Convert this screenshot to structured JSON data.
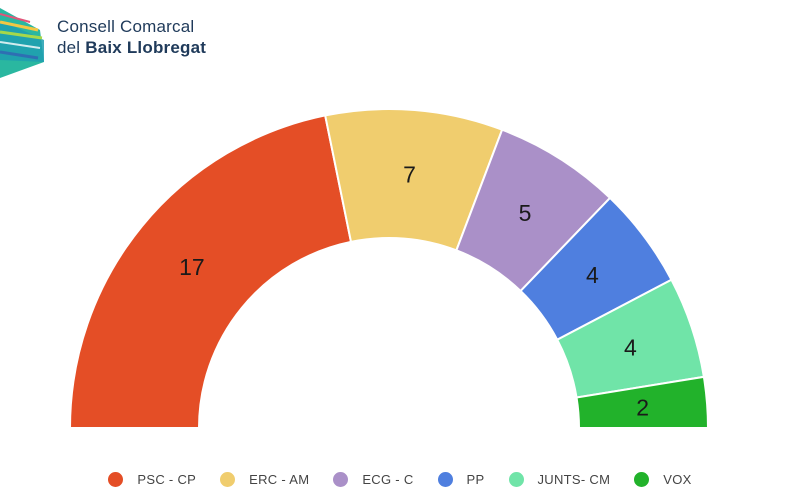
{
  "header": {
    "org_line1": "Consell Comarcal",
    "org_line2_prefix": "del ",
    "org_line2_bold": "Baix Llobregat"
  },
  "chart_data": {
    "type": "parliament_semicircle",
    "categories": [
      "PSC - CP",
      "ERC - AM",
      "ECG - C",
      "PP",
      "JUNTS- CM",
      "VOX"
    ],
    "values": [
      17,
      7,
      5,
      4,
      4,
      2
    ],
    "colors": [
      "#e44e26",
      "#f0cd6e",
      "#aa90c8",
      "#4f7fdf",
      "#70e4a8",
      "#22b22b"
    ],
    "legend_position": "bottom-center",
    "series": [
      {
        "name": "PSC - CP",
        "value": 17,
        "color": "#e44e26"
      },
      {
        "name": "ERC - AM",
        "value": 7,
        "color": "#f0cd6e"
      },
      {
        "name": "ECG - C",
        "value": 5,
        "color": "#aa90c8"
      },
      {
        "name": "PP",
        "value": 4,
        "color": "#4f7fdf"
      },
      {
        "name": "JUNTS- CM",
        "value": 4,
        "color": "#70e4a8"
      },
      {
        "name": "VOX",
        "value": 2,
        "color": "#22b22b"
      }
    ]
  }
}
